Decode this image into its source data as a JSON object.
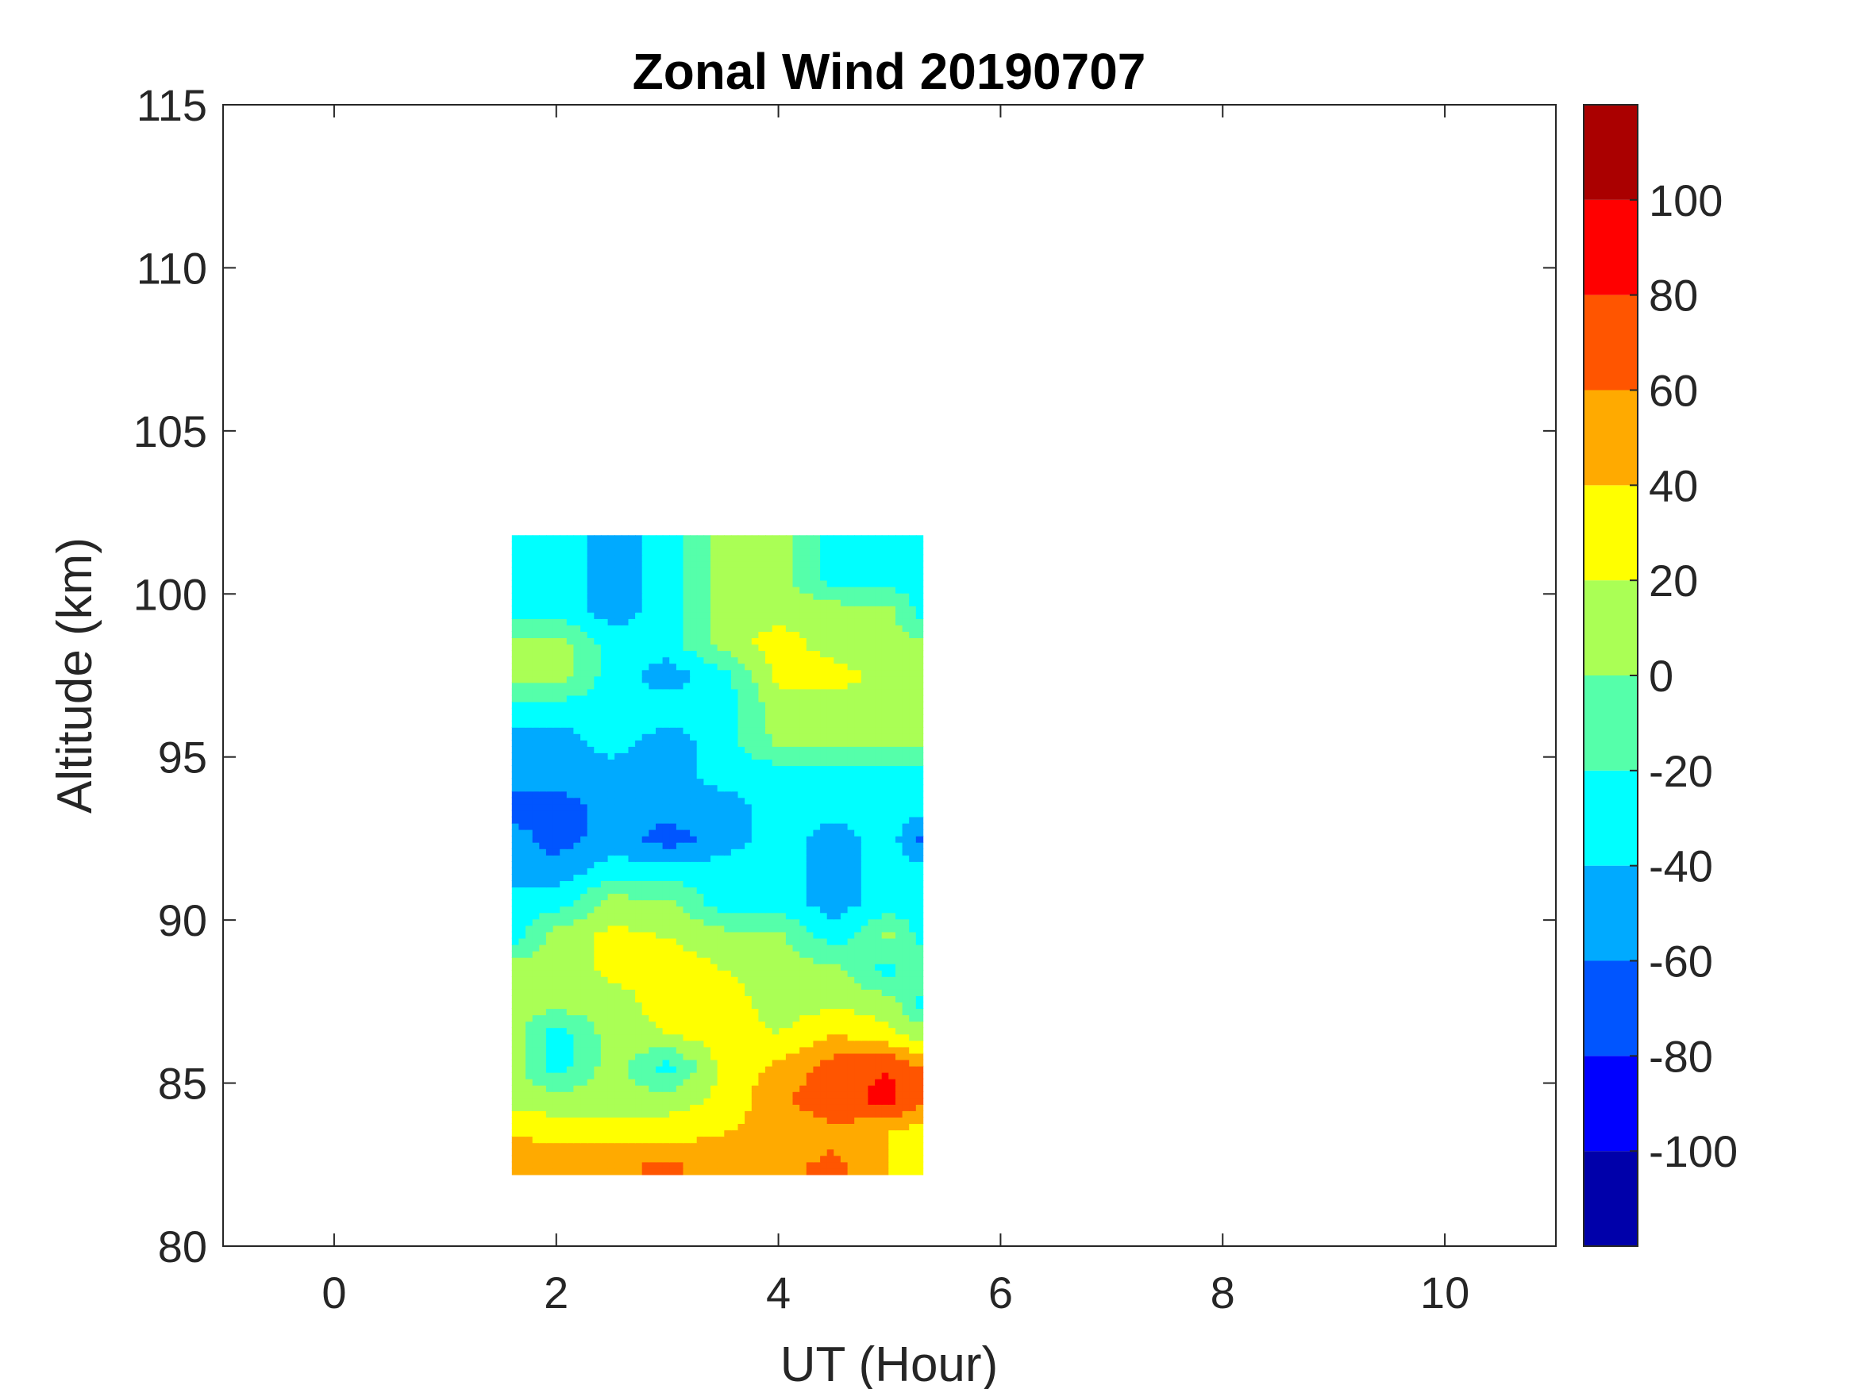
{
  "chart_data": {
    "type": "heatmap",
    "subtype": "filled-contour",
    "title": "Zonal Wind 20190707",
    "xlabel": "UT (Hour)",
    "ylabel": "Altitude (km)",
    "xlim": [
      -1,
      11
    ],
    "ylim": [
      80,
      115
    ],
    "xticks": [
      0,
      2,
      4,
      6,
      8,
      10
    ],
    "yticks": [
      80,
      85,
      90,
      95,
      100,
      105,
      110,
      115
    ],
    "colorbar": {
      "clim": [
        -120,
        120
      ],
      "ticks": [
        -100,
        -80,
        -60,
        -40,
        -20,
        0,
        20,
        40,
        60,
        80,
        100
      ],
      "levels": [
        -120,
        -100,
        -80,
        -60,
        -40,
        -20,
        0,
        20,
        40,
        60,
        80,
        100,
        120
      ],
      "colors": [
        "#0000aa",
        "#0000ff",
        "#0055ff",
        "#00aaff",
        "#00ffff",
        "#55ffaa",
        "#aaff55",
        "#ffff00",
        "#ffaa00",
        "#ff5500",
        "#ff0000",
        "#aa0000"
      ]
    },
    "data_grid": {
      "x": [
        1.6,
        2.0,
        2.5,
        3.0,
        3.5,
        4.0,
        4.5,
        5.0,
        5.3
      ],
      "y": [
        82.5,
        83.5,
        84.5,
        85.5,
        86.5,
        87.5,
        88.5,
        89.5,
        90.5,
        91.5,
        92.5,
        93.5,
        94.5,
        95.5,
        96.5,
        97.5,
        98.5,
        99.5,
        100.5,
        101.5
      ],
      "z": [
        [
          50,
          60,
          55,
          65,
          50,
          55,
          65,
          40,
          30
        ],
        [
          40,
          30,
          30,
          30,
          40,
          45,
          55,
          40,
          30
        ],
        [
          10,
          10,
          10,
          10,
          25,
          55,
          75,
          85,
          65
        ],
        [
          10,
          -30,
          10,
          -30,
          25,
          45,
          70,
          80,
          60
        ],
        [
          10,
          -30,
          10,
          20,
          30,
          20,
          40,
          25,
          10
        ],
        [
          10,
          10,
          10,
          30,
          30,
          10,
          15,
          10,
          -30
        ],
        [
          10,
          10,
          25,
          30,
          20,
          10,
          5,
          -30,
          5
        ],
        [
          -30,
          10,
          25,
          20,
          10,
          5,
          -30,
          5,
          -30
        ],
        [
          -30,
          -30,
          10,
          5,
          -30,
          -30,
          -50,
          -30,
          -30
        ],
        [
          -50,
          -50,
          -30,
          -30,
          -30,
          -30,
          -50,
          -30,
          -30
        ],
        [
          -50,
          -70,
          -50,
          -70,
          -50,
          -30,
          -50,
          -30,
          -70
        ],
        [
          -70,
          -70,
          -50,
          -50,
          -50,
          -30,
          -30,
          -30,
          -30
        ],
        [
          -50,
          -50,
          -50,
          -50,
          -30,
          -30,
          -30,
          -30,
          -30
        ],
        [
          -50,
          -50,
          -30,
          -50,
          -30,
          5,
          10,
          10,
          5
        ],
        [
          -30,
          -30,
          -30,
          -30,
          -30,
          10,
          10,
          10,
          5
        ],
        [
          10,
          10,
          -30,
          -50,
          -30,
          25,
          30,
          10,
          5
        ],
        [
          10,
          10,
          -30,
          -30,
          10,
          30,
          10,
          10,
          5
        ],
        [
          -30,
          -30,
          -50,
          -30,
          10,
          10,
          10,
          5,
          -30
        ],
        [
          -30,
          -30,
          -50,
          -30,
          10,
          10,
          -30,
          -30,
          -30
        ],
        [
          -30,
          -30,
          -50,
          -30,
          10,
          10,
          -30,
          -30,
          -30
        ]
      ]
    }
  }
}
